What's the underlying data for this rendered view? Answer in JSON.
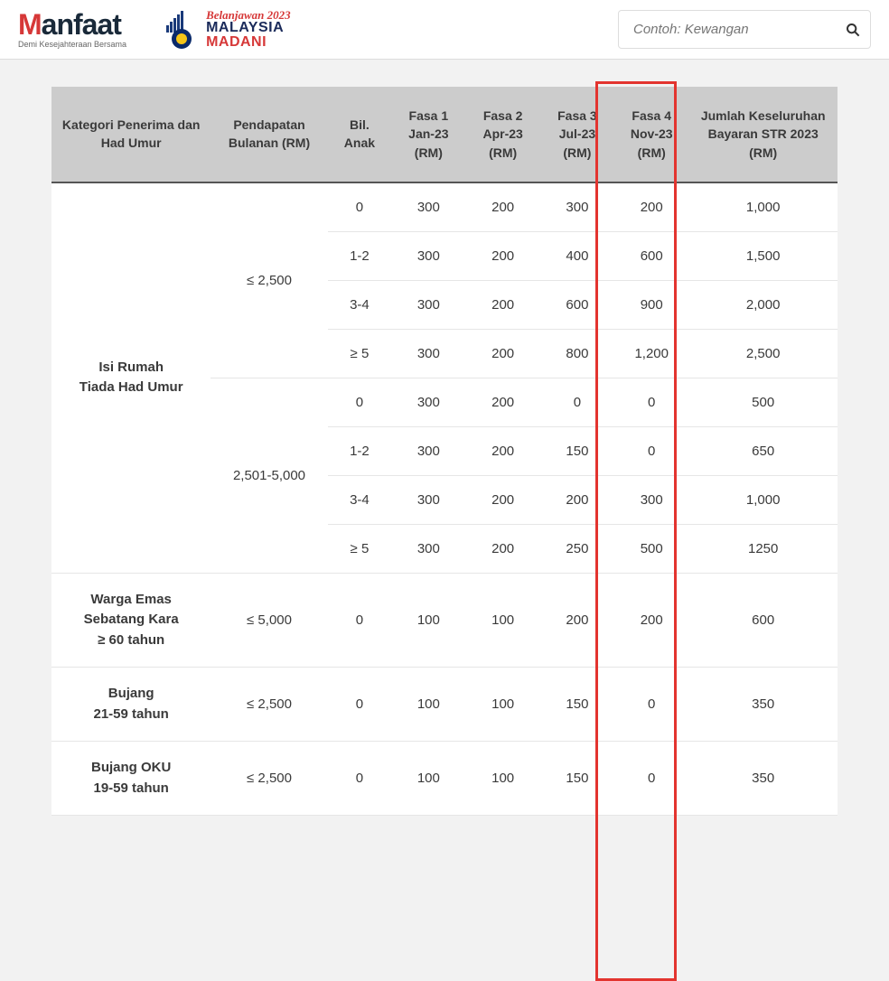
{
  "header": {
    "logo_manfaat": {
      "text_m": "M",
      "text_rest": "anfaat",
      "tagline": "Demi Kesejahteraan Bersama"
    },
    "logo_madani": {
      "script": "Belanjawan 2023",
      "line1": "MALAYSIA",
      "line2": "MADANI"
    },
    "search_placeholder": "Contoh: Kewangan"
  },
  "table": {
    "columns": [
      "Kategori Penerima dan Had Umur",
      "Pendapatan Bulanan (RM)",
      "Bil. Anak",
      "Fasa 1 Jan-23 (RM)",
      "Fasa 2 Apr-23 (RM)",
      "Fasa 3 Jul-23 (RM)",
      "Fasa 4 Nov-23 (RM)",
      "Jumlah Keseluruhan Bayaran STR 2023 (RM)"
    ],
    "groups": [
      {
        "category": "Isi Rumah\nTiada Had Umur",
        "incomes": [
          {
            "label": "≤ 2,500",
            "rows": [
              {
                "anak": "0",
                "f1": "300",
                "f2": "200",
                "f3": "300",
                "f4": "200",
                "total": "1,000"
              },
              {
                "anak": "1-2",
                "f1": "300",
                "f2": "200",
                "f3": "400",
                "f4": "600",
                "total": "1,500"
              },
              {
                "anak": "3-4",
                "f1": "300",
                "f2": "200",
                "f3": "600",
                "f4": "900",
                "total": "2,000"
              },
              {
                "anak": "≥ 5",
                "f1": "300",
                "f2": "200",
                "f3": "800",
                "f4": "1,200",
                "total": "2,500"
              }
            ]
          },
          {
            "label": "2,501-5,000",
            "rows": [
              {
                "anak": "0",
                "f1": "300",
                "f2": "200",
                "f3": "0",
                "f4": "0",
                "total": "500"
              },
              {
                "anak": "1-2",
                "f1": "300",
                "f2": "200",
                "f3": "150",
                "f4": "0",
                "total": "650"
              },
              {
                "anak": "3-4",
                "f1": "300",
                "f2": "200",
                "f3": "200",
                "f4": "300",
                "total": "1,000"
              },
              {
                "anak": "≥ 5",
                "f1": "300",
                "f2": "200",
                "f3": "250",
                "f4": "500",
                "total": "1250"
              }
            ]
          }
        ]
      },
      {
        "category": "Warga Emas Sebatang Kara\n≥ 60 tahun",
        "incomes": [
          {
            "label": "≤ 5,000",
            "rows": [
              {
                "anak": "0",
                "f1": "100",
                "f2": "100",
                "f3": "200",
                "f4": "200",
                "total": "600"
              }
            ]
          }
        ]
      },
      {
        "category": "Bujang\n21-59 tahun",
        "incomes": [
          {
            "label": "≤ 2,500",
            "rows": [
              {
                "anak": "0",
                "f1": "100",
                "f2": "100",
                "f3": "150",
                "f4": "0",
                "total": "350"
              }
            ]
          }
        ]
      },
      {
        "category": "Bujang OKU\n19-59 tahun",
        "incomes": [
          {
            "label": "≤ 2,500",
            "rows": [
              {
                "anak": "0",
                "f1": "100",
                "f2": "100",
                "f3": "150",
                "f4": "0",
                "total": "350"
              }
            ]
          }
        ]
      }
    ],
    "style": {
      "header_bg": "#cccccc",
      "header_border_bottom": "#555555",
      "row_border": "#e6e6e6",
      "text_color": "#3a3a3a",
      "highlight_border": "#e3342f",
      "highlight_column_index": 6,
      "font_size_header": 14,
      "font_size_cell": 15
    }
  }
}
